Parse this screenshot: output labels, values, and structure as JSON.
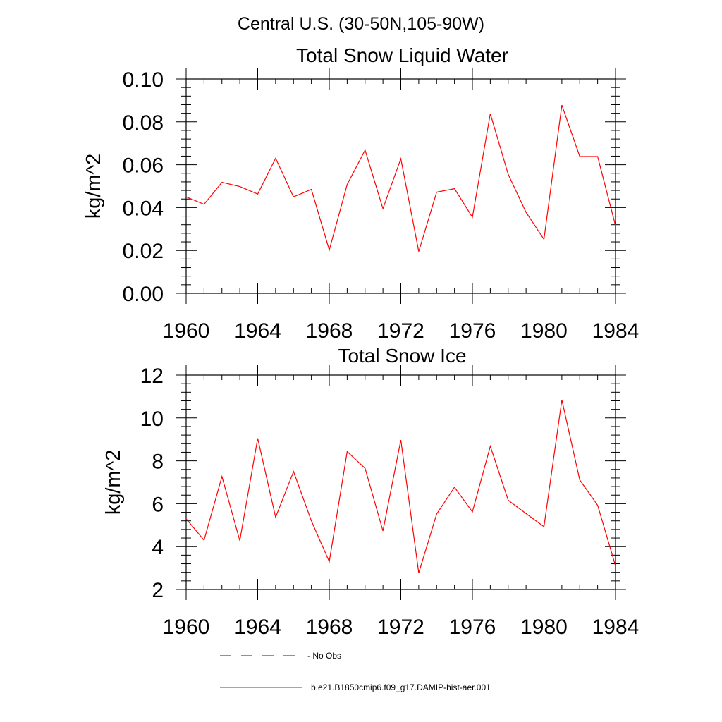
{
  "figure": {
    "suptitle": "Central U.S. (30-50N,105-90W)"
  },
  "colors": {
    "series": "#ff0000",
    "obs": "#1a1a6e",
    "axes": "#000000"
  },
  "legend": {
    "position": "bottom",
    "entries": [
      {
        "label": "- No Obs",
        "style": "dashed",
        "color": "#1a1a6e"
      },
      {
        "label": "b.e21.B1850cmip6.f09_g17.DAMIP-hist-aer.001",
        "style": "solid",
        "color": "#ff0000"
      }
    ]
  },
  "chart_data": [
    {
      "type": "line",
      "title": "Total Snow Liquid Water",
      "xlabel": "",
      "ylabel": "kg/m^2",
      "xlim": [
        1960,
        1984
      ],
      "ylim": [
        0,
        0.1
      ],
      "xticks": [
        "1960",
        "1964",
        "1968",
        "1972",
        "1976",
        "1980",
        "1984"
      ],
      "yticks": [
        "0.00",
        "0.02",
        "0.04",
        "0.06",
        "0.08",
        "0.10"
      ],
      "grid": false,
      "x": [
        1960,
        1961,
        1962,
        1963,
        1964,
        1965,
        1966,
        1967,
        1968,
        1969,
        1970,
        1971,
        1972,
        1973,
        1974,
        1975,
        1976,
        1977,
        1978,
        1979,
        1980,
        1981,
        1982,
        1983,
        1984
      ],
      "series": [
        {
          "name": "b.e21.B1850cmip6.f09_g17.DAMIP-hist-aer.001",
          "values": [
            0.045,
            0.0415,
            0.0518,
            0.0498,
            0.0463,
            0.063,
            0.045,
            0.0485,
            0.0202,
            0.0508,
            0.0668,
            0.0395,
            0.0628,
            0.0195,
            0.0472,
            0.0488,
            0.0355,
            0.0838,
            0.0555,
            0.0378,
            0.0252,
            0.0878,
            0.0638,
            0.0638,
            0.0315
          ]
        }
      ]
    },
    {
      "type": "line",
      "title": "Total Snow Ice",
      "xlabel": "",
      "ylabel": "kg/m^2",
      "xlim": [
        1960,
        1984
      ],
      "ylim": [
        2,
        12
      ],
      "xticks": [
        "1960",
        "1964",
        "1968",
        "1972",
        "1976",
        "1980",
        "1984"
      ],
      "yticks": [
        "2",
        "4",
        "6",
        "8",
        "10",
        "12"
      ],
      "grid": false,
      "x": [
        1960,
        1961,
        1962,
        1963,
        1964,
        1965,
        1966,
        1967,
        1968,
        1969,
        1970,
        1971,
        1972,
        1973,
        1974,
        1975,
        1976,
        1977,
        1978,
        1979,
        1980,
        1981,
        1982,
        1983,
        1984
      ],
      "series": [
        {
          "name": "b.e21.B1850cmip6.f09_g17.DAMIP-hist-aer.001",
          "values": [
            5.3,
            4.3,
            7.27,
            4.28,
            9.05,
            5.37,
            7.5,
            5.2,
            3.3,
            8.43,
            7.65,
            4.73,
            8.97,
            2.77,
            5.52,
            6.77,
            5.62,
            8.68,
            6.16,
            5.54,
            4.93,
            10.84,
            7.11,
            5.93,
            3.1
          ]
        }
      ]
    }
  ]
}
